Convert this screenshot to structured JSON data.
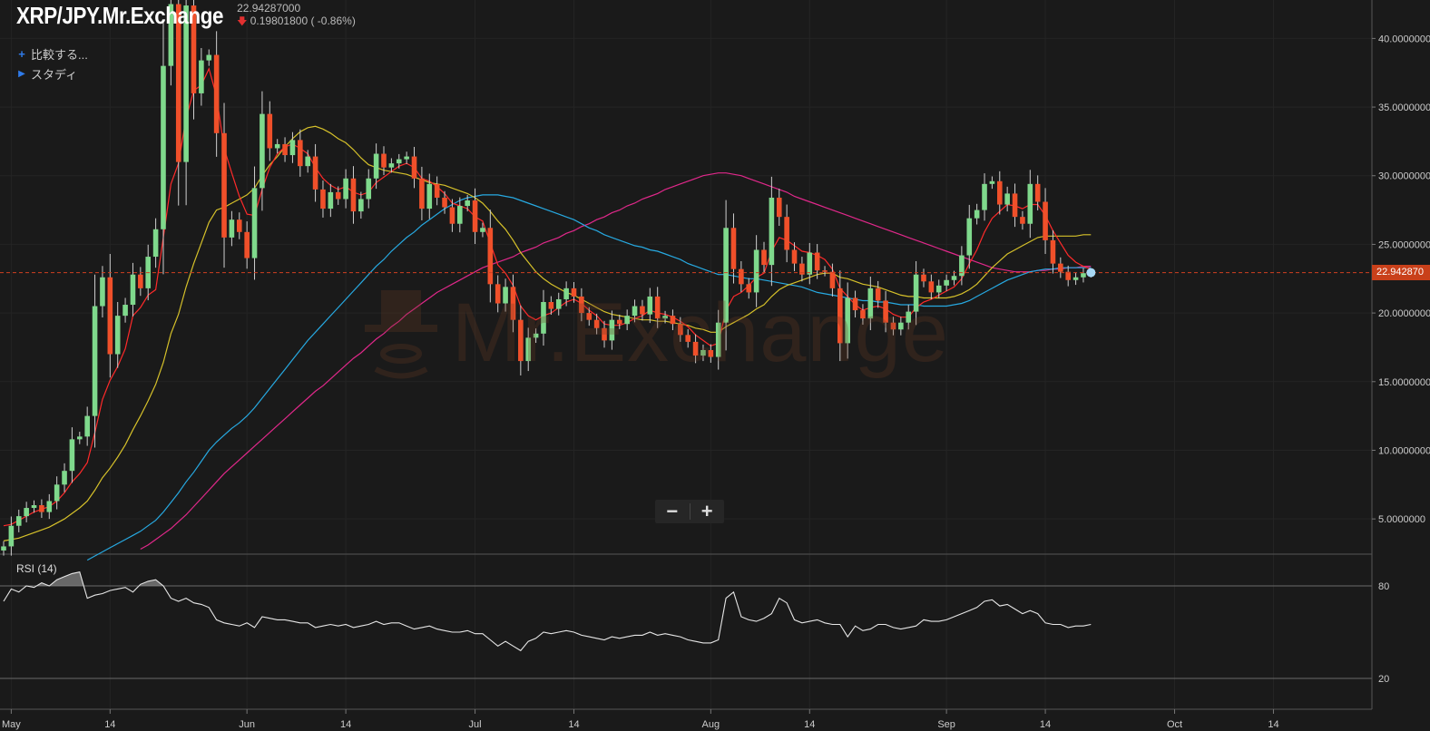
{
  "header": {
    "symbol": "XRP/JPY.Mr.Exchange",
    "last": "22.94287000",
    "change": "0.19801800",
    "change_pct": "( -0.86%)",
    "down_arrow": "arrow-down-icon"
  },
  "menu": {
    "compare_label": "比較する...",
    "studies_label": "スタディ"
  },
  "watermark": {
    "text": "Mr.Exchange"
  },
  "zoom": {
    "minus": "−",
    "plus": "+"
  },
  "last_price_tag": "22.942870",
  "rsi_label": "RSI (14)",
  "colors": {
    "background": "#1a1a1a",
    "up_candle": "#7fd98c",
    "down_candle": "#f0502a",
    "ma_short": "#ff2a2a",
    "ma_mid": "#d6c12a",
    "ma_long1": "#27a9e1",
    "ma_long2": "#e0288a",
    "last_line": "#d04020"
  },
  "chart_data": [
    {
      "type": "candlestick",
      "title": "XRP/JPY.Mr.Exchange",
      "ylim": [
        2.5,
        42.8
      ],
      "yticks": [
        {
          "value": 40,
          "label": "40.0000000"
        },
        {
          "value": 35,
          "label": "35.0000000"
        },
        {
          "value": 30,
          "label": "30.0000000"
        },
        {
          "value": 25,
          "label": "25.0000000"
        },
        {
          "value": 20,
          "label": "20.0000000"
        },
        {
          "value": 15,
          "label": "15.0000000"
        },
        {
          "value": 10,
          "label": "10.0000000"
        },
        {
          "value": 5,
          "label": "5.0000000"
        }
      ],
      "xticks": [
        {
          "day": 1,
          "label": "May"
        },
        {
          "day": 14,
          "label": "14"
        },
        {
          "day": 32,
          "label": "Jun"
        },
        {
          "day": 45,
          "label": "14"
        },
        {
          "day": 62,
          "label": "Jul"
        },
        {
          "day": 75,
          "label": "14"
        },
        {
          "day": 93,
          "label": "Aug"
        },
        {
          "day": 106,
          "label": "14"
        },
        {
          "day": 124,
          "label": "Sep"
        },
        {
          "day": 137,
          "label": "14"
        },
        {
          "day": 154,
          "label": "Oct"
        },
        {
          "day": 167,
          "label": "14"
        }
      ],
      "last_price": 22.94287,
      "close": [
        3.0,
        4.5,
        5.2,
        5.8,
        6.0,
        5.5,
        6.3,
        7.5,
        8.5,
        10.8,
        11.0,
        12.5,
        20.5,
        22.6,
        17.0,
        19.8,
        20.6,
        22.8,
        21.8,
        24.1,
        26.1,
        38.0,
        42.5,
        31.0,
        42.4,
        36.0,
        38.4,
        38.8,
        33.1,
        25.5,
        26.8,
        25.9,
        24.0,
        29.1,
        34.5,
        32.0,
        32.3,
        31.5,
        32.6,
        30.7,
        31.4,
        29.0,
        27.6,
        28.8,
        28.3,
        29.8,
        27.4,
        28.3,
        29.8,
        31.6,
        30.6,
        30.9,
        31.2,
        31.4,
        29.8,
        27.6,
        29.4,
        28.4,
        27.7,
        26.5,
        27.8,
        28.2,
        25.9,
        26.2,
        22.1,
        20.7,
        21.9,
        19.5,
        16.5,
        18.2,
        18.5,
        20.8,
        20.3,
        21.0,
        21.8,
        21.2,
        20.0,
        19.5,
        18.9,
        18.0,
        19.5,
        19.2,
        19.8,
        20.5,
        19.9,
        21.2,
        19.6,
        19.8,
        19.2,
        18.4,
        17.9,
        16.9,
        17.3,
        16.8,
        19.3,
        26.2,
        23.2,
        22.1,
        21.5,
        24.6,
        23.5,
        28.4,
        27.0,
        24.6,
        23.6,
        22.8,
        24.4,
        23.1,
        23.0,
        21.8,
        17.8,
        21.1,
        20.2,
        19.6,
        21.8,
        20.9,
        19.3,
        18.8,
        19.3,
        20.1,
        22.8,
        22.3,
        21.5,
        22.0,
        22.4,
        22.7,
        24.2,
        26.9,
        27.5,
        29.4,
        29.6,
        27.9,
        28.7,
        27.0,
        26.5,
        29.4,
        28.1,
        25.3,
        23.6,
        23.0,
        22.4,
        22.6,
        22.9,
        22.94
      ],
      "ma_short": [
        4.5,
        4.6,
        4.9,
        5.2,
        5.5,
        5.7,
        5.9,
        6.3,
        6.9,
        7.7,
        8.3,
        9.1,
        11.3,
        13.7,
        15.1,
        16.1,
        17.4,
        19.8,
        20.4,
        21.3,
        21.7,
        25.5,
        29.4,
        30.9,
        34.2,
        36.2,
        36.6,
        37.8,
        35.8,
        32.0,
        30.2,
        28.5,
        27.2,
        27.1,
        29.0,
        30.6,
        31.6,
        32.1,
        32.3,
        32.0,
        31.6,
        30.6,
        29.8,
        29.3,
        29.0,
        29.2,
        28.8,
        28.6,
        28.8,
        29.5,
        29.9,
        30.3,
        30.7,
        30.9,
        30.6,
        29.8,
        29.6,
        29.2,
        28.7,
        28.0,
        27.8,
        27.6,
        27.0,
        26.7,
        25.1,
        23.5,
        22.9,
        22.0,
        20.5,
        19.8,
        19.5,
        19.8,
        20.0,
        20.4,
        20.8,
        21.0,
        20.7,
        20.2,
        19.8,
        19.2,
        19.1,
        19.1,
        19.3,
        19.6,
        19.8,
        20.2,
        20.0,
        19.9,
        19.7,
        19.4,
        19.0,
        18.4,
        18.0,
        17.6,
        17.8,
        20.2,
        21.2,
        21.5,
        22.0,
        22.6,
        22.9,
        24.5,
        25.5,
        25.3,
        24.9,
        24.5,
        24.4,
        24.2,
        23.9,
        23.2,
        21.8,
        21.2,
        20.6,
        20.2,
        20.4,
        20.5,
        20.3,
        19.9,
        19.7,
        19.7,
        20.4,
        20.8,
        21.0,
        21.3,
        21.6,
        21.9,
        22.5,
        23.6,
        24.6,
        25.9,
        26.9,
        27.4,
        27.9,
        27.8,
        27.6,
        27.9,
        27.9,
        27.1,
        26.0,
        25.1,
        24.2,
        23.7,
        23.4,
        23.2
      ],
      "ma_mid": [
        3.4,
        3.5,
        3.6,
        3.8,
        4.0,
        4.2,
        4.4,
        4.7,
        5.0,
        5.4,
        5.8,
        6.3,
        7.1,
        8.0,
        8.7,
        9.5,
        10.4,
        11.5,
        12.5,
        13.6,
        14.8,
        16.4,
        18.5,
        19.9,
        21.9,
        23.6,
        25.1,
        26.6,
        27.5,
        27.7,
        28.0,
        28.3,
        28.6,
        29.1,
        30.0,
        30.8,
        31.4,
        32.1,
        32.7,
        33.2,
        33.5,
        33.6,
        33.4,
        33.1,
        32.7,
        32.4,
        31.9,
        31.3,
        30.8,
        30.6,
        30.4,
        30.3,
        30.2,
        30.1,
        29.9,
        29.7,
        29.5,
        29.4,
        29.3,
        29.1,
        28.9,
        28.7,
        28.4,
        28.0,
        27.4,
        26.7,
        26.1,
        25.3,
        24.4,
        23.7,
        23.0,
        22.5,
        22.1,
        21.8,
        21.5,
        21.3,
        21.0,
        20.7,
        20.4,
        20.1,
        19.9,
        19.8,
        19.7,
        19.6,
        19.5,
        19.5,
        19.4,
        19.4,
        19.3,
        19.2,
        19.1,
        18.9,
        18.8,
        18.6,
        18.6,
        19.0,
        19.3,
        19.6,
        19.9,
        20.3,
        20.6,
        21.2,
        21.7,
        22.0,
        22.2,
        22.4,
        22.6,
        22.8,
        22.9,
        22.9,
        22.6,
        22.5,
        22.3,
        22.1,
        22.0,
        21.9,
        21.7,
        21.5,
        21.3,
        21.2,
        21.2,
        21.1,
        21.1,
        21.1,
        21.1,
        21.2,
        21.4,
        21.7,
        22.1,
        22.7,
        23.3,
        23.8,
        24.3,
        24.6,
        24.9,
        25.2,
        25.5,
        25.6,
        25.6,
        25.6,
        25.6,
        25.6,
        25.7,
        25.7
      ],
      "ma_long1": [
        null,
        null,
        null,
        null,
        null,
        null,
        null,
        null,
        null,
        null,
        null,
        2.0,
        2.3,
        2.6,
        2.9,
        3.2,
        3.5,
        3.8,
        4.1,
        4.5,
        4.9,
        5.5,
        6.2,
        6.9,
        7.7,
        8.4,
        9.2,
        10.0,
        10.6,
        11.1,
        11.6,
        12.0,
        12.5,
        13.1,
        13.8,
        14.5,
        15.2,
        15.9,
        16.6,
        17.3,
        18.0,
        18.6,
        19.2,
        19.8,
        20.4,
        21.0,
        21.6,
        22.2,
        22.8,
        23.4,
        23.9,
        24.5,
        25.0,
        25.5,
        25.9,
        26.4,
        26.8,
        27.2,
        27.6,
        27.9,
        28.2,
        28.4,
        28.5,
        28.6,
        28.6,
        28.6,
        28.5,
        28.4,
        28.2,
        28.0,
        27.8,
        27.6,
        27.4,
        27.2,
        27.0,
        26.8,
        26.5,
        26.2,
        26.0,
        25.7,
        25.5,
        25.3,
        25.1,
        24.9,
        24.8,
        24.6,
        24.5,
        24.3,
        24.1,
        23.9,
        23.6,
        23.4,
        23.2,
        23.0,
        22.8,
        22.8,
        22.7,
        22.6,
        22.5,
        22.5,
        22.4,
        22.3,
        22.2,
        22.1,
        22.0,
        21.9,
        21.7,
        21.5,
        21.4,
        21.3,
        21.2,
        21.1,
        21.0,
        20.9,
        20.9,
        20.8,
        20.8,
        20.7,
        20.6,
        20.6,
        20.6,
        20.5,
        20.5,
        20.5,
        20.5,
        20.6,
        20.7,
        20.9,
        21.2,
        21.5,
        21.8,
        22.1,
        22.4,
        22.6,
        22.8,
        23.0,
        23.1,
        23.2,
        23.2,
        23.3,
        23.3,
        23.3,
        23.3,
        23.3
      ],
      "ma_long2": [
        null,
        null,
        null,
        null,
        null,
        null,
        null,
        null,
        null,
        null,
        null,
        null,
        null,
        null,
        null,
        null,
        null,
        null,
        2.8,
        3.1,
        3.5,
        3.9,
        4.3,
        4.8,
        5.3,
        5.9,
        6.5,
        7.1,
        7.7,
        8.3,
        8.8,
        9.3,
        9.8,
        10.3,
        10.8,
        11.3,
        11.8,
        12.3,
        12.8,
        13.3,
        13.8,
        14.3,
        14.7,
        15.2,
        15.7,
        16.2,
        16.7,
        17.1,
        17.6,
        18.1,
        18.5,
        19.0,
        19.4,
        19.9,
        20.3,
        20.7,
        21.1,
        21.5,
        21.8,
        22.1,
        22.4,
        22.7,
        23.0,
        23.3,
        23.5,
        23.7,
        23.9,
        24.1,
        24.4,
        24.6,
        24.8,
        25.1,
        25.3,
        25.5,
        25.8,
        26.0,
        26.3,
        26.5,
        26.8,
        27.0,
        27.3,
        27.5,
        27.8,
        28.0,
        28.3,
        28.5,
        28.7,
        29.0,
        29.2,
        29.4,
        29.6,
        29.8,
        30.0,
        30.1,
        30.2,
        30.2,
        30.1,
        30.0,
        29.8,
        29.6,
        29.4,
        29.2,
        29.0,
        28.8,
        28.5,
        28.3,
        28.1,
        27.9,
        27.7,
        27.5,
        27.3,
        27.1,
        26.9,
        26.7,
        26.5,
        26.3,
        26.1,
        25.9,
        25.7,
        25.5,
        25.3,
        25.1,
        24.9,
        24.7,
        24.5,
        24.3,
        24.1,
        23.9,
        23.7,
        23.5,
        23.3,
        23.2,
        23.1,
        23.0,
        23.0,
        23.0,
        23.1,
        23.1,
        23.2,
        23.2,
        23.3,
        23.3,
        23.4,
        23.4
      ]
    },
    {
      "type": "line",
      "title": "RSI (14)",
      "ylim": [
        0,
        100
      ],
      "yticks": [
        {
          "value": 80,
          "label": "80"
        },
        {
          "value": 20,
          "label": "20"
        }
      ],
      "values": [
        70,
        78,
        76,
        80,
        79,
        82,
        80,
        84,
        86,
        88,
        89,
        72,
        74,
        75,
        77,
        78,
        79,
        76,
        81,
        83,
        84,
        80,
        72,
        70,
        72,
        69,
        68,
        66,
        58,
        56,
        55,
        54,
        56,
        53,
        60,
        59,
        58,
        58,
        57,
        56,
        56,
        53,
        54,
        55,
        54,
        55,
        53,
        54,
        55,
        57,
        55,
        56,
        56,
        54,
        52,
        53,
        54,
        52,
        51,
        50,
        50,
        51,
        49,
        49,
        45,
        41,
        44,
        41,
        38,
        44,
        46,
        50,
        49,
        50,
        51,
        50,
        48,
        47,
        46,
        45,
        47,
        46,
        47,
        48,
        48,
        50,
        48,
        49,
        48,
        47,
        45,
        44,
        43,
        43,
        45,
        72,
        76,
        60,
        58,
        57,
        59,
        62,
        72,
        69,
        58,
        56,
        57,
        58,
        56,
        55,
        55,
        47,
        54,
        51,
        52,
        55,
        55,
        53,
        52,
        53,
        54,
        58,
        57,
        57,
        58,
        60,
        62,
        64,
        66,
        70,
        71,
        67,
        68,
        65,
        62,
        64,
        62,
        56,
        55,
        55,
        53,
        54,
        54,
        55
      ]
    }
  ]
}
